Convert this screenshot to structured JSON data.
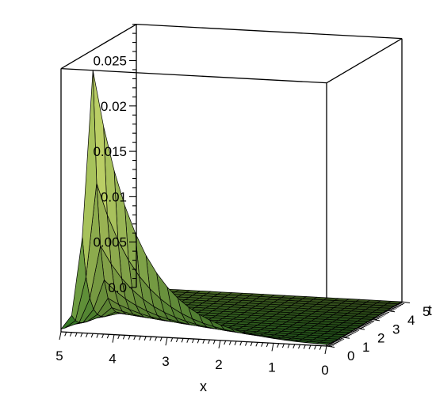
{
  "chart_data": {
    "type": "surface3d",
    "x_axis": {
      "label": "x",
      "range": [
        0,
        5
      ],
      "ticks": [
        "0",
        "1",
        "2",
        "3",
        "4",
        "5"
      ]
    },
    "t_axis": {
      "label": "t",
      "range": [
        0,
        5
      ],
      "ticks": [
        "0",
        "1",
        "2",
        "3",
        "4",
        "5"
      ]
    },
    "z_axis": {
      "label": "",
      "range": [
        0,
        0.029
      ],
      "ticks": [
        "0.0",
        "0.005",
        "0.01",
        "0.015",
        "0.02",
        "0.025"
      ]
    },
    "grid_resolution": {
      "x": 25,
      "t": 20
    },
    "surface_profile": {
      "description_of_values": "peak height along t=0 edge at x=4.4, decays with x and with t",
      "peak_value": 0.029,
      "peak_location": {
        "x": 4.4,
        "t": 0
      },
      "edge_t0": [
        {
          "x": 0,
          "z": 0.0002
        },
        {
          "x": 1,
          "z": 0.0006
        },
        {
          "x": 2,
          "z": 0.0018
        },
        {
          "x": 3,
          "z": 0.0055
        },
        {
          "x": 4,
          "z": 0.0185
        },
        {
          "x": 4.4,
          "z": 0.029
        },
        {
          "x": 5,
          "z": 0.0005
        }
      ]
    },
    "colors": {
      "low": "#1f6a1c",
      "mid": "#e2f07a",
      "high_t": "#e65a45",
      "mesh": "#000000",
      "box": "#000000"
    },
    "box": true
  }
}
